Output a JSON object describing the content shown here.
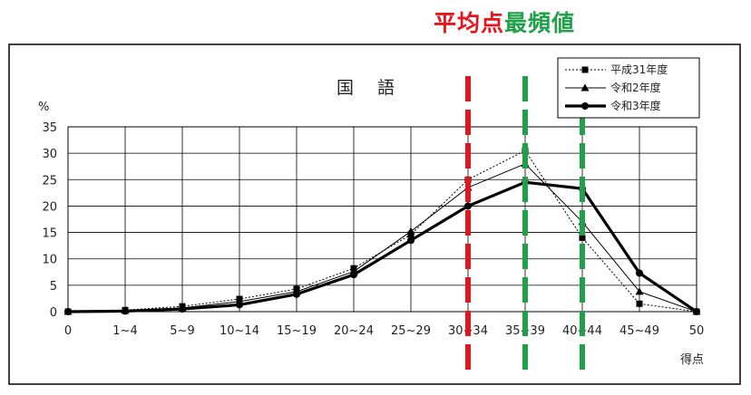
{
  "labels": {
    "average": "平均点",
    "mode": "最頻値"
  },
  "chart_data": {
    "type": "line",
    "title": "国 語",
    "ylabel": "%",
    "xlabel": "得点",
    "ylim": [
      0,
      35
    ],
    "yticks": [
      "0",
      "5",
      "10",
      "15",
      "20",
      "25",
      "30",
      "35"
    ],
    "categories": [
      "0",
      "1~4",
      "5~9",
      "10~14",
      "15~19",
      "20~24",
      "25~29",
      "30~34",
      "35~39",
      "40~44",
      "45~49",
      "50"
    ],
    "grid": true,
    "legend_position": "top-right",
    "series": [
      {
        "name": "平成31年度",
        "marker": "square",
        "style": "dotted",
        "values": [
          0,
          0.3,
          1.0,
          2.4,
          4.3,
          8.2,
          14.6,
          25.0,
          30.5,
          14.0,
          1.5,
          0
        ]
      },
      {
        "name": "令和2年度",
        "marker": "triangle",
        "style": "thin",
        "values": [
          0,
          0.2,
          0.7,
          1.9,
          3.8,
          7.6,
          15.2,
          23.5,
          28.0,
          17.0,
          3.8,
          0
        ]
      },
      {
        "name": "令和3年度",
        "marker": "circle",
        "style": "bold",
        "values": [
          0,
          0.1,
          0.5,
          1.3,
          3.3,
          7.0,
          13.5,
          20.0,
          24.5,
          23.3,
          7.3,
          0
        ]
      }
    ],
    "reference_lines": [
      {
        "label": "平均点",
        "color": "#e8141c",
        "x_position": "30~34"
      },
      {
        "label": "最頻値",
        "color": "#21a04a",
        "x_position": "35~39"
      },
      {
        "label": "最頻値",
        "color": "#21a04a",
        "x_position": "40~44"
      }
    ]
  }
}
